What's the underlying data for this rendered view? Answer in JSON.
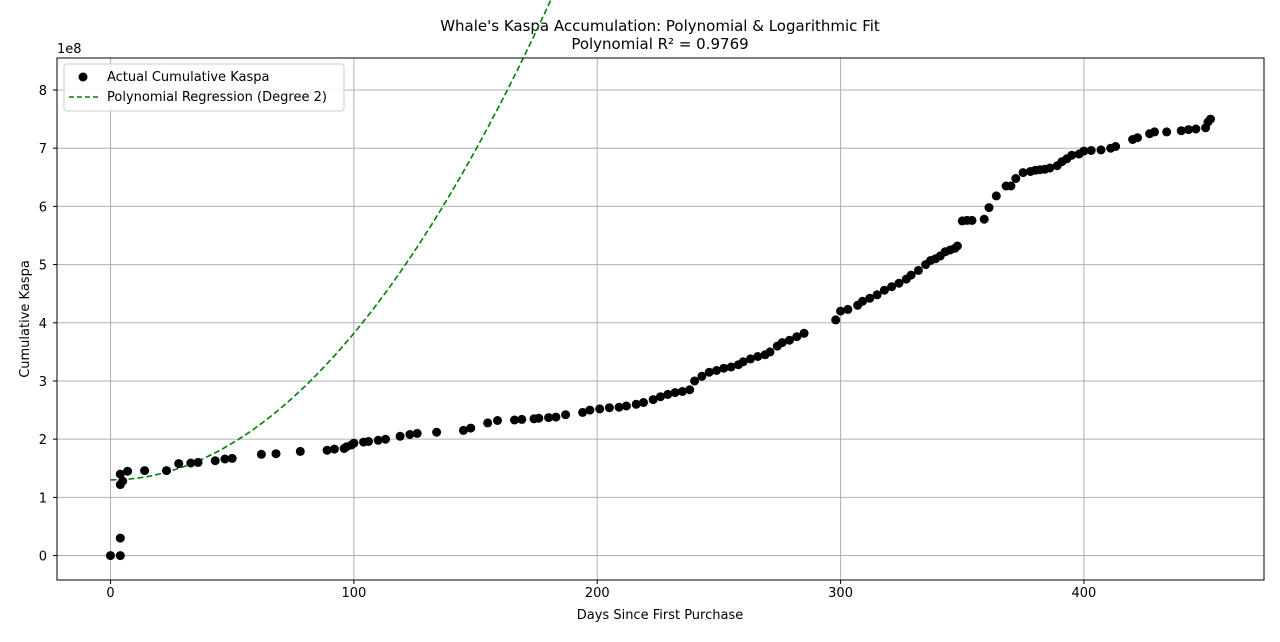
{
  "chart_data": {
    "type": "scatter",
    "title": "Whale's Kaspa Accumulation: Polynomial & Logarithmic Fit",
    "subtitle": "Polynomial R² = 0.9769",
    "xlabel": "Days Since First Purchase",
    "ylabel": "Cumulative Kaspa",
    "y_offset_text": "1e8",
    "xlim": [
      -22,
      474
    ],
    "ylim": [
      -0.42,
      8.55
    ],
    "xticks": [
      0,
      100,
      200,
      300,
      400
    ],
    "xtick_labels": [
      "0",
      "100",
      "200",
      "300",
      "400"
    ],
    "yticks": [
      0,
      1,
      2,
      3,
      4,
      5,
      6,
      7,
      8
    ],
    "ytick_labels": [
      "0",
      "1",
      "2",
      "3",
      "4",
      "5",
      "6",
      "7",
      "8"
    ],
    "grid": true,
    "legend_position": "top-left",
    "colors": {
      "points": "#000000",
      "fit": "#008000",
      "grid": "#b0b0b0"
    },
    "series": [
      {
        "name": "Actual Cumulative Kaspa",
        "kind": "scatter",
        "x": [
          0,
          4,
          4,
          4,
          4,
          5,
          7,
          14,
          23,
          28,
          33,
          36,
          43,
          47,
          50,
          62,
          68,
          78,
          89,
          92,
          96,
          97,
          99,
          100,
          104,
          106,
          110,
          113,
          119,
          123,
          126,
          134,
          145,
          148,
          155,
          159,
          166,
          169,
          174,
          176,
          180,
          183,
          187,
          194,
          197,
          201,
          205,
          209,
          212,
          216,
          219,
          223,
          226,
          229,
          232,
          235,
          238,
          240,
          243,
          246,
          249,
          252,
          255,
          258,
          260,
          263,
          266,
          269,
          271,
          274,
          276,
          279,
          282,
          285,
          298,
          300,
          303,
          307,
          309,
          312,
          315,
          318,
          321,
          324,
          327,
          329,
          332,
          335,
          337,
          339,
          341,
          343,
          345,
          347,
          348,
          350,
          352,
          354,
          359,
          361,
          364,
          368,
          370,
          372,
          375,
          378,
          380,
          382,
          384,
          386,
          389,
          391,
          393,
          395,
          398,
          400,
          403,
          407,
          411,
          413,
          420,
          422,
          427,
          429,
          434,
          440,
          443,
          446,
          450,
          451,
          452
        ],
        "y": [
          0.0,
          0.0,
          0.3,
          1.22,
          1.4,
          1.28,
          1.45,
          1.46,
          1.46,
          1.58,
          1.59,
          1.6,
          1.63,
          1.66,
          1.67,
          1.74,
          1.75,
          1.79,
          1.81,
          1.83,
          1.84,
          1.87,
          1.9,
          1.93,
          1.95,
          1.96,
          1.98,
          2.0,
          2.05,
          2.08,
          2.1,
          2.12,
          2.15,
          2.19,
          2.28,
          2.32,
          2.33,
          2.34,
          2.35,
          2.36,
          2.37,
          2.38,
          2.42,
          2.46,
          2.5,
          2.52,
          2.54,
          2.55,
          2.57,
          2.6,
          2.63,
          2.68,
          2.73,
          2.77,
          2.8,
          2.82,
          2.85,
          3.0,
          3.08,
          3.15,
          3.18,
          3.22,
          3.24,
          3.28,
          3.33,
          3.38,
          3.42,
          3.45,
          3.5,
          3.6,
          3.66,
          3.7,
          3.76,
          3.82,
          4.05,
          4.2,
          4.23,
          4.3,
          4.37,
          4.42,
          4.48,
          4.56,
          4.62,
          4.68,
          4.75,
          4.82,
          4.9,
          5.0,
          5.07,
          5.1,
          5.15,
          5.22,
          5.25,
          5.28,
          5.32,
          5.75,
          5.76,
          5.76,
          5.78,
          5.98,
          6.18,
          6.35,
          6.35,
          6.48,
          6.58,
          6.6,
          6.62,
          6.63,
          6.64,
          6.66,
          6.7,
          6.77,
          6.82,
          6.88,
          6.9,
          6.95,
          6.96,
          6.97,
          7.0,
          7.03,
          7.15,
          7.18,
          7.25,
          7.28,
          7.28,
          7.3,
          7.32,
          7.33,
          7.35,
          7.45,
          7.5
        ]
      },
      {
        "name": "Polynomial Regression (Degree 2)",
        "kind": "line",
        "style": "dashed",
        "equation": "y = 1.30 + 0.000252·x²",
        "x_range": [
          0,
          452
        ]
      }
    ]
  }
}
